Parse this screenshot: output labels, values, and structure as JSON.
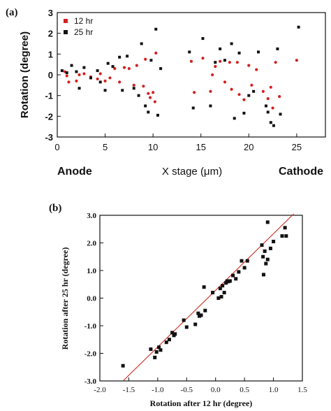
{
  "chart_data": [
    {
      "type": "scatter",
      "panel_label": "(a)",
      "xlabel": "X stage (μm)",
      "ylabel": "Rotation (degree)",
      "xlim": [
        0,
        28
      ],
      "ylim": [
        -3,
        3
      ],
      "x_ticks": [
        "0",
        "5",
        "10",
        "15",
        "20",
        "25"
      ],
      "y_ticks": [
        "-3",
        "-2",
        "-1",
        "0",
        "1",
        "2",
        "3"
      ],
      "left_end_label": "Anode",
      "right_end_label": "Cathode",
      "legend_position": "top-left",
      "grid": false,
      "series": [
        {
          "name": "12 hr",
          "color": "#d42020",
          "marker": "circle",
          "points": [
            [
              0.8,
              0.15
            ],
            [
              1.0,
              -0.05
            ],
            [
              1.2,
              -0.35
            ],
            [
              2.0,
              -0.3
            ],
            [
              2.3,
              0.0
            ],
            [
              2.8,
              0.05
            ],
            [
              3.5,
              -0.1
            ],
            [
              4.2,
              -0.2
            ],
            [
              4.5,
              0.05
            ],
            [
              5.0,
              -0.3
            ],
            [
              5.5,
              -0.15
            ],
            [
              6.0,
              0.3
            ],
            [
              6.5,
              -0.35
            ],
            [
              7.0,
              0.35
            ],
            [
              7.5,
              0.3
            ],
            [
              8.0,
              -0.5
            ],
            [
              8.3,
              0.45
            ],
            [
              9.0,
              -0.55
            ],
            [
              9.2,
              0.75
            ],
            [
              9.5,
              -0.9
            ],
            [
              9.7,
              -1.1
            ],
            [
              10.0,
              -0.85
            ],
            [
              10.2,
              -1.3
            ],
            [
              10.3,
              1.05
            ],
            [
              14.0,
              0.65
            ],
            [
              14.3,
              -0.85
            ],
            [
              15.2,
              0.8
            ],
            [
              16.0,
              -0.8
            ],
            [
              16.2,
              0.0
            ],
            [
              16.5,
              0.4
            ],
            [
              17.0,
              0.65
            ],
            [
              17.5,
              -0.35
            ],
            [
              18.0,
              0.6
            ],
            [
              18.2,
              -0.7
            ],
            [
              18.8,
              0.6
            ],
            [
              19.0,
              -0.95
            ],
            [
              19.5,
              -1.2
            ],
            [
              20.0,
              0.45
            ],
            [
              20.3,
              -0.5
            ],
            [
              20.8,
              0.25
            ],
            [
              21.5,
              -0.8
            ],
            [
              22.0,
              -1.15
            ],
            [
              22.3,
              -0.6
            ],
            [
              22.5,
              -1.6
            ],
            [
              22.8,
              0.6
            ],
            [
              23.2,
              -1.05
            ],
            [
              25.0,
              0.7
            ]
          ]
        },
        {
          "name": "25 hr",
          "color": "#111111",
          "marker": "square",
          "points": [
            [
              0.5,
              0.2
            ],
            [
              1.0,
              0.1
            ],
            [
              1.5,
              0.45
            ],
            [
              2.0,
              0.15
            ],
            [
              2.3,
              -0.65
            ],
            [
              2.8,
              0.35
            ],
            [
              3.5,
              -0.15
            ],
            [
              4.2,
              0.2
            ],
            [
              4.5,
              -0.35
            ],
            [
              5.0,
              -0.75
            ],
            [
              5.3,
              0.55
            ],
            [
              5.8,
              0.4
            ],
            [
              6.5,
              0.85
            ],
            [
              6.8,
              -0.75
            ],
            [
              7.3,
              0.9
            ],
            [
              8.0,
              -0.65
            ],
            [
              8.5,
              -1.0
            ],
            [
              8.8,
              1.5
            ],
            [
              9.2,
              -1.5
            ],
            [
              9.5,
              -1.8
            ],
            [
              9.8,
              0.7
            ],
            [
              10.3,
              2.2
            ],
            [
              10.5,
              -1.95
            ],
            [
              10.8,
              0.3
            ],
            [
              13.8,
              1.1
            ],
            [
              14.2,
              -1.6
            ],
            [
              15.2,
              1.75
            ],
            [
              16.0,
              -1.5
            ],
            [
              16.5,
              0.6
            ],
            [
              17.0,
              1.25
            ],
            [
              17.5,
              0.7
            ],
            [
              18.2,
              1.5
            ],
            [
              18.5,
              -2.1
            ],
            [
              19.0,
              1.05
            ],
            [
              19.5,
              -1.85
            ],
            [
              20.0,
              -1.0
            ],
            [
              20.5,
              -0.8
            ],
            [
              21.0,
              1.1
            ],
            [
              21.8,
              -1.5
            ],
            [
              22.0,
              -1.8
            ],
            [
              22.3,
              -2.3
            ],
            [
              22.6,
              -2.45
            ],
            [
              23.0,
              1.25
            ],
            [
              23.3,
              -1.9
            ],
            [
              25.2,
              2.3
            ]
          ]
        }
      ]
    },
    {
      "type": "scatter",
      "panel_label": "(b)",
      "xlabel": "Rotation after 12 hr (degree)",
      "ylabel": "Rotation after 25 hr (degree)",
      "xlim": [
        -2.0,
        1.5
      ],
      "ylim": [
        -3.0,
        3.0
      ],
      "x_ticks": [
        "-2.0",
        "-1.5",
        "-1.0",
        "-0.5",
        "0.0",
        "0.5",
        "1.0",
        "1.5"
      ],
      "y_ticks": [
        "-3.0",
        "-2.0",
        "-1.0",
        "0.0",
        "1.0",
        "2.0",
        "3.0"
      ],
      "grid": false,
      "fit_line": {
        "color": "#cc2a1a",
        "x": [
          -1.6,
          1.35
        ],
        "y": [
          -3.0,
          3.05
        ]
      },
      "series": [
        {
          "color": "#111111",
          "marker": "square",
          "points": [
            [
              -1.6,
              -2.45
            ],
            [
              -1.12,
              -1.85
            ],
            [
              -1.05,
              -2.15
            ],
            [
              -1.02,
              -1.95
            ],
            [
              -0.98,
              -1.78
            ],
            [
              -0.95,
              -1.88
            ],
            [
              -0.85,
              -1.6
            ],
            [
              -0.8,
              -1.5
            ],
            [
              -0.75,
              -1.25
            ],
            [
              -0.72,
              -1.35
            ],
            [
              -0.7,
              -1.3
            ],
            [
              -0.55,
              -0.8
            ],
            [
              -0.5,
              -1.05
            ],
            [
              -0.35,
              -0.95
            ],
            [
              -0.3,
              -0.55
            ],
            [
              -0.28,
              -0.65
            ],
            [
              -0.25,
              -0.62
            ],
            [
              -0.2,
              0.4
            ],
            [
              -0.18,
              -0.45
            ],
            [
              -0.05,
              0.2
            ],
            [
              0.05,
              0.0
            ],
            [
              0.08,
              0.35
            ],
            [
              0.1,
              0.05
            ],
            [
              0.12,
              0.45
            ],
            [
              0.15,
              0.2
            ],
            [
              0.18,
              0.55
            ],
            [
              0.2,
              0.62
            ],
            [
              0.22,
              0.6
            ],
            [
              0.25,
              0.62
            ],
            [
              0.3,
              0.82
            ],
            [
              0.35,
              0.7
            ],
            [
              0.4,
              0.95
            ],
            [
              0.45,
              1.35
            ],
            [
              0.5,
              1.1
            ],
            [
              0.55,
              1.35
            ],
            [
              0.8,
              1.92
            ],
            [
              0.82,
              1.5
            ],
            [
              0.85,
              1.7
            ],
            [
              0.83,
              0.85
            ],
            [
              0.87,
              1.25
            ],
            [
              0.9,
              1.4
            ],
            [
              0.9,
              2.75
            ],
            [
              0.95,
              1.8
            ],
            [
              1.0,
              2.05
            ],
            [
              1.15,
              2.25
            ],
            [
              1.2,
              2.55
            ],
            [
              1.22,
              2.25
            ]
          ]
        }
      ]
    }
  ],
  "colors": {
    "series_12hr": "#d42020",
    "series_25hr": "#111111",
    "fit_line": "#cc2a1a"
  }
}
